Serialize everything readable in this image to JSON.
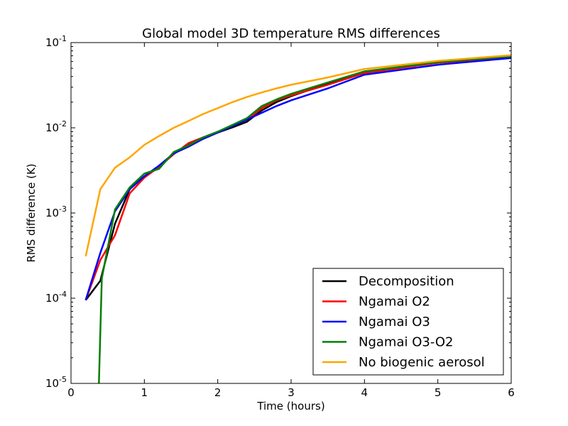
{
  "chart_data": {
    "type": "line",
    "title": "Global model 3D temperature RMS differences",
    "xlabel": "Time (hours)",
    "ylabel": "RMS difference (K)",
    "xlim": [
      0,
      6
    ],
    "ylim": [
      1e-05,
      0.1
    ],
    "y_scale": "log",
    "x_ticks": [
      0,
      1,
      2,
      3,
      4,
      5,
      6
    ],
    "x_tick_labels": [
      "0",
      "1",
      "2",
      "3",
      "4",
      "5",
      "6"
    ],
    "y_ticks": [
      {
        "value": 1e-05,
        "base": "10",
        "exp": "-5"
      },
      {
        "value": 0.0001,
        "base": "10",
        "exp": "-4"
      },
      {
        "value": 0.001,
        "base": "10",
        "exp": "-3"
      },
      {
        "value": 0.01,
        "base": "10",
        "exp": "-2"
      },
      {
        "value": 0.1,
        "base": "10",
        "exp": "-1"
      }
    ],
    "grid": false,
    "legend_position": "lower-right",
    "series": [
      {
        "name": "Decomposition",
        "color": "#000000",
        "points": [
          [
            0.2,
            9.5e-05
          ],
          [
            0.4,
            0.00016
          ],
          [
            0.6,
            0.00075
          ],
          [
            0.8,
            0.0019
          ],
          [
            1.0,
            0.0027
          ],
          [
            1.2,
            0.0034
          ],
          [
            1.4,
            0.005
          ],
          [
            1.6,
            0.0063
          ],
          [
            1.8,
            0.0076
          ],
          [
            2.0,
            0.0088
          ],
          [
            2.2,
            0.0101
          ],
          [
            2.4,
            0.0118
          ],
          [
            2.6,
            0.016
          ],
          [
            2.8,
            0.02
          ],
          [
            3.0,
            0.0235
          ],
          [
            3.5,
            0.033
          ],
          [
            4.0,
            0.045
          ],
          [
            5.0,
            0.058
          ],
          [
            6.0,
            0.068
          ]
        ]
      },
      {
        "name": "Ngamai O2",
        "color": "#ff0000",
        "points": [
          [
            0.2,
            9.5e-05
          ],
          [
            0.4,
            0.00028
          ],
          [
            0.6,
            0.00055
          ],
          [
            0.8,
            0.0017
          ],
          [
            1.0,
            0.0026
          ],
          [
            1.2,
            0.0035
          ],
          [
            1.4,
            0.0049
          ],
          [
            1.6,
            0.0066
          ],
          [
            1.8,
            0.0077
          ],
          [
            2.0,
            0.009
          ],
          [
            2.2,
            0.0105
          ],
          [
            2.4,
            0.0125
          ],
          [
            2.6,
            0.017
          ],
          [
            2.8,
            0.021
          ],
          [
            3.0,
            0.024
          ],
          [
            3.5,
            0.032
          ],
          [
            4.0,
            0.044
          ],
          [
            5.0,
            0.058
          ],
          [
            6.0,
            0.068
          ]
        ]
      },
      {
        "name": "Ngamai O3",
        "color": "#0000ff",
        "points": [
          [
            0.2,
            9.5e-05
          ],
          [
            0.4,
            0.00034
          ],
          [
            0.6,
            0.00105
          ],
          [
            0.8,
            0.0019
          ],
          [
            1.0,
            0.0027
          ],
          [
            1.2,
            0.0036
          ],
          [
            1.4,
            0.005
          ],
          [
            1.6,
            0.006
          ],
          [
            1.8,
            0.0074
          ],
          [
            2.0,
            0.0088
          ],
          [
            2.2,
            0.0105
          ],
          [
            2.4,
            0.0125
          ],
          [
            2.6,
            0.015
          ],
          [
            2.8,
            0.018
          ],
          [
            3.0,
            0.021
          ],
          [
            3.5,
            0.029
          ],
          [
            4.0,
            0.042
          ],
          [
            5.0,
            0.055
          ],
          [
            6.0,
            0.066
          ]
        ]
      },
      {
        "name": "Ngamai O3-O2",
        "color": "#008000",
        "points": [
          [
            0.38,
            1e-05
          ],
          [
            0.42,
            0.00017
          ],
          [
            0.6,
            0.0011
          ],
          [
            0.8,
            0.002
          ],
          [
            1.0,
            0.0029
          ],
          [
            1.2,
            0.0033
          ],
          [
            1.4,
            0.0052
          ],
          [
            1.6,
            0.0062
          ],
          [
            1.8,
            0.0077
          ],
          [
            2.0,
            0.009
          ],
          [
            2.2,
            0.0108
          ],
          [
            2.4,
            0.013
          ],
          [
            2.6,
            0.018
          ],
          [
            2.8,
            0.0215
          ],
          [
            3.0,
            0.025
          ],
          [
            3.5,
            0.034
          ],
          [
            4.0,
            0.046
          ],
          [
            5.0,
            0.059
          ],
          [
            6.0,
            0.069
          ]
        ]
      },
      {
        "name": "No biogenic aerosol",
        "color": "#ffa500",
        "points": [
          [
            0.2,
            0.00031
          ],
          [
            0.4,
            0.0019
          ],
          [
            0.6,
            0.0034
          ],
          [
            0.8,
            0.0045
          ],
          [
            1.0,
            0.0063
          ],
          [
            1.2,
            0.008
          ],
          [
            1.4,
            0.01
          ],
          [
            1.6,
            0.012
          ],
          [
            1.8,
            0.0145
          ],
          [
            2.0,
            0.017
          ],
          [
            2.2,
            0.02
          ],
          [
            2.4,
            0.023
          ],
          [
            2.6,
            0.026
          ],
          [
            2.8,
            0.029
          ],
          [
            3.0,
            0.032
          ],
          [
            3.5,
            0.039
          ],
          [
            4.0,
            0.049
          ],
          [
            5.0,
            0.061
          ],
          [
            6.0,
            0.071
          ]
        ]
      }
    ]
  }
}
